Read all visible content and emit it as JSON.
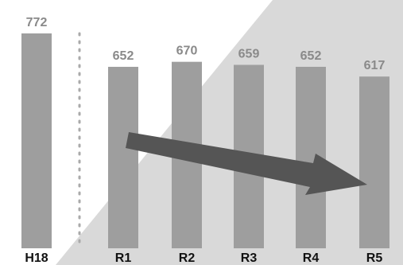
{
  "chart_data": {
    "type": "bar",
    "categories": [
      "H18",
      "R1",
      "R2",
      "R3",
      "R4",
      "R5"
    ],
    "values": [
      772,
      652,
      670,
      659,
      652,
      617
    ],
    "title": "",
    "xlabel": "",
    "ylabel": "",
    "ylim": [
      0,
      772
    ],
    "grid": false,
    "legend": "none",
    "annotations": [
      {
        "type": "dotted-separator",
        "after_category": "H18"
      },
      {
        "type": "trend-arrow",
        "from_category": "R1",
        "to_category": "R5",
        "direction": "down"
      }
    ],
    "colors": {
      "bar": "#9e9e9e",
      "background_band": "#d9d9d9",
      "arrow": "#555555",
      "value_label": "#8a8a8a",
      "category_label": "#111111",
      "separator": "#aaaaaa"
    }
  }
}
